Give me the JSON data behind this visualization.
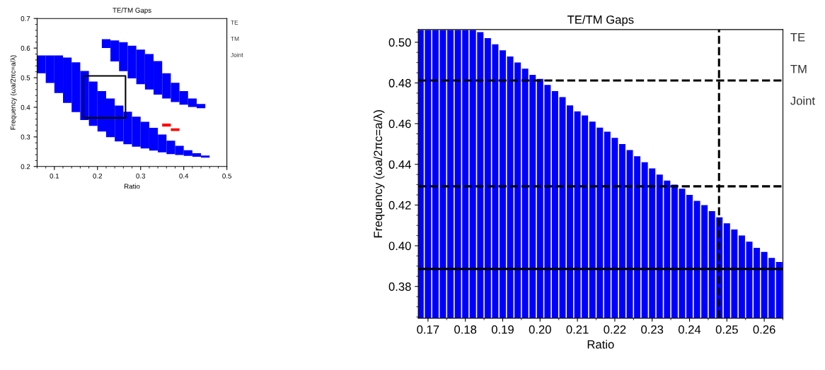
{
  "chart_data": [
    {
      "type": "bar",
      "title": "TE/TM Gaps",
      "xlabel": "Ratio",
      "ylabel": "Frequency (ωa/2πc=a/λ)",
      "xlim": [
        0.06,
        0.5
      ],
      "ylim": [
        0.2,
        0.7
      ],
      "xticks": [
        0.1,
        0.2,
        0.3,
        0.4,
        0.5
      ],
      "yticks": [
        0.2,
        0.3,
        0.4,
        0.5,
        0.6,
        0.7
      ],
      "annotations": [
        "TE",
        "TM",
        "Joint"
      ],
      "grid": false,
      "legend": false,
      "series": [
        {
          "color": "#0000ff",
          "x": [
            0.07,
            0.09,
            0.11,
            0.13,
            0.15,
            0.17,
            0.19,
            0.21,
            0.23,
            0.25,
            0.27,
            0.29,
            0.31,
            0.33,
            0.35,
            0.37,
            0.39,
            0.41,
            0.43,
            0.45
          ],
          "base": [
            0.515,
            0.482,
            0.448,
            0.415,
            0.384,
            0.357,
            0.337,
            0.318,
            0.299,
            0.285,
            0.275,
            0.267,
            0.261,
            0.254,
            0.248,
            0.242,
            0.239,
            0.236,
            0.233,
            0.23
          ],
          "values": [
            0.06,
            0.093,
            0.127,
            0.153,
            0.168,
            0.166,
            0.15,
            0.137,
            0.131,
            0.121,
            0.11,
            0.101,
            0.09,
            0.077,
            0.06,
            0.045,
            0.031,
            0.019,
            0.012,
            0.007
          ]
        },
        {
          "color": "#0000ff",
          "x": [
            0.22,
            0.24,
            0.26,
            0.28,
            0.3,
            0.32,
            0.34,
            0.36,
            0.38,
            0.4,
            0.42,
            0.44
          ],
          "base": [
            0.6,
            0.555,
            0.522,
            0.498,
            0.478,
            0.46,
            0.443,
            0.43,
            0.418,
            0.409,
            0.401,
            0.397
          ],
          "values": [
            0.03,
            0.071,
            0.098,
            0.11,
            0.117,
            0.12,
            0.113,
            0.085,
            0.065,
            0.046,
            0.029,
            0.014
          ]
        },
        {
          "color": "#ff0000",
          "x": [
            0.36,
            0.38
          ],
          "base": [
            0.335,
            0.32
          ],
          "values": [
            0.01,
            0.009
          ]
        }
      ]
    },
    {
      "type": "bar",
      "title": "TE/TM Gaps",
      "xlabel": "Ratio",
      "ylabel": "Frequency (ωa/2πc=a/λ)",
      "xlim": [
        0.1674,
        0.265
      ],
      "ylim": [
        0.3644,
        0.5062
      ],
      "xticks": [
        {
          "value": 0.17,
          "label": "0.17"
        },
        {
          "value": 0.18,
          "label": "0.18"
        },
        {
          "value": 0.19,
          "label": "0.19"
        },
        {
          "value": 0.2,
          "label": "0.20"
        },
        {
          "value": 0.21,
          "label": "0.21"
        },
        {
          "value": 0.22,
          "label": "0.22"
        },
        {
          "value": 0.23,
          "label": "0.23"
        },
        {
          "value": 0.24,
          "label": "0.24"
        },
        {
          "value": 0.25,
          "label": "0.25"
        },
        {
          "value": 0.26,
          "label": "0.26"
        }
      ],
      "yticks": [
        {
          "value": 0.38,
          "label": "0.38"
        },
        {
          "value": 0.4,
          "label": "0.40"
        },
        {
          "value": 0.42,
          "label": "0.42"
        },
        {
          "value": 0.44,
          "label": "0.44"
        },
        {
          "value": 0.46,
          "label": "0.46"
        },
        {
          "value": 0.48,
          "label": "0.48"
        },
        {
          "value": 0.5,
          "label": "0.50"
        }
      ],
      "annotations": [
        "TE",
        "TM",
        "Joint"
      ],
      "grid": false,
      "legend": false,
      "ref_lines": [
        {
          "axis": "y",
          "value": 0.4812,
          "color": "#000000",
          "line_style": "dashed"
        },
        {
          "axis": "y",
          "value": 0.4292,
          "color": "#000000",
          "line_style": "dashed"
        },
        {
          "axis": "y",
          "value": 0.3886,
          "color": "#000000",
          "line_style": "solid"
        },
        {
          "axis": "x",
          "value": 0.2479,
          "color": "#000000",
          "line_style": "dashed"
        }
      ],
      "series": [
        {
          "color": "#0000ff",
          "x": [
            0.168,
            0.17,
            0.172,
            0.174,
            0.176,
            0.178,
            0.18,
            0.182,
            0.184,
            0.186,
            0.188,
            0.19,
            0.192,
            0.194,
            0.196,
            0.198,
            0.2,
            0.202,
            0.204,
            0.206,
            0.208,
            0.21,
            0.212,
            0.214,
            0.216,
            0.218,
            0.22,
            0.222,
            0.224,
            0.226,
            0.228,
            0.23,
            0.232,
            0.234,
            0.236,
            0.238,
            0.24,
            0.242,
            0.244,
            0.246,
            0.248,
            0.25,
            0.252,
            0.254,
            0.256,
            0.258,
            0.26,
            0.262,
            0.264
          ],
          "values": [
            0.506,
            0.506,
            0.506,
            0.506,
            0.506,
            0.506,
            0.506,
            0.506,
            0.505,
            0.502,
            0.499,
            0.496,
            0.493,
            0.49,
            0.487,
            0.484,
            0.482,
            0.479,
            0.476,
            0.473,
            0.469,
            0.466,
            0.464,
            0.461,
            0.458,
            0.456,
            0.453,
            0.45,
            0.447,
            0.444,
            0.441,
            0.438,
            0.435,
            0.432,
            0.43,
            0.428,
            0.425,
            0.422,
            0.42,
            0.417,
            0.414,
            0.411,
            0.408,
            0.405,
            0.402,
            0.399,
            0.397,
            0.394,
            0.392
          ]
        }
      ]
    }
  ]
}
